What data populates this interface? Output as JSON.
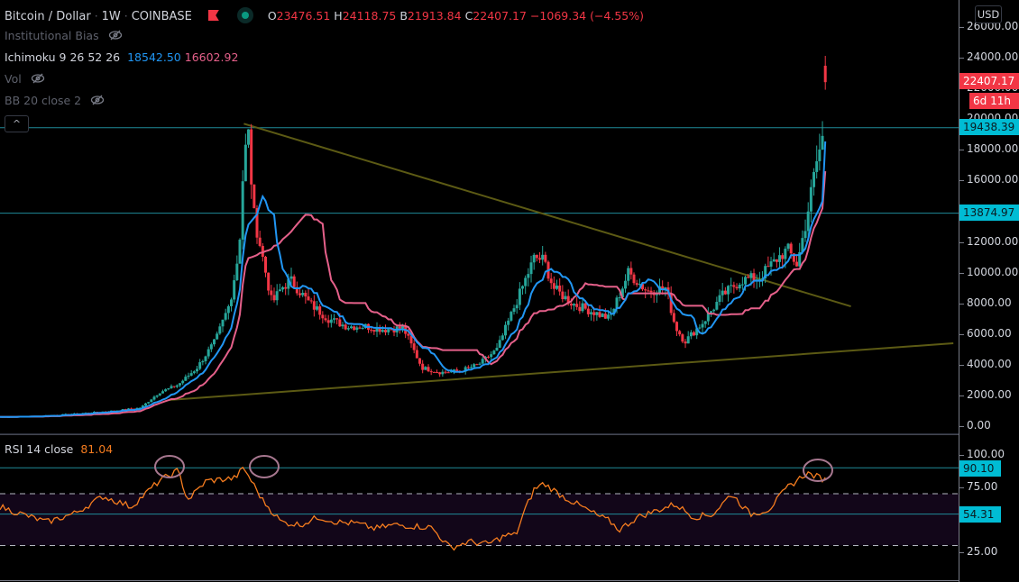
{
  "header": {
    "symbol": "Bitcoin / Dollar",
    "interval": "1W",
    "exchange": "COINBASE",
    "title_sep": " · ",
    "ohlc": {
      "o_label": "O",
      "o": "23476.51",
      "h_label": "H",
      "h": "24118.75",
      "b_label": "B",
      "b": "21913.84",
      "c_label": "C",
      "c": "22407.17",
      "change": "−1069.34 (−4.55%)"
    }
  },
  "indicators": [
    {
      "name": "Institutional Bias",
      "hidden": true
    },
    {
      "name": "Ichimoku 9 26 52 26",
      "values": [
        "18542.50",
        "16602.92"
      ]
    },
    {
      "name": "Vol",
      "hidden": true
    },
    {
      "name": "BB 20 close 2",
      "hidden": true
    }
  ],
  "collapse_button": "^",
  "price_axis": {
    "currency": "USD",
    "ticks": [
      "26000.00",
      "24000.00",
      "22000.00",
      "20000.00",
      "18000.00",
      "16000.00",
      "14000.00",
      "12000.00",
      "10000.00",
      "8000.00",
      "6000.00",
      "4000.00",
      "2000.00",
      "0.00"
    ],
    "last_price_badge": "22407.17",
    "countdown_badge": "6d 11h",
    "level_badges": [
      "19438.39",
      "13874.97"
    ]
  },
  "rsi": {
    "label": "RSI 14 close",
    "value": "81.04",
    "ticks": [
      "100.00",
      "75.00",
      "25.00"
    ],
    "level_badges": [
      "90.10",
      "54.31"
    ]
  },
  "colors": {
    "up": "#26a69a",
    "down": "#f23645",
    "tenkan": "#2196f3",
    "kijun": "#e5608a",
    "trendline": "#5c5a14",
    "hline": "#1f8a99",
    "badge_cyan": "#00bcd4",
    "rsi_line": "#f57c1f",
    "rsi_band": "#120619",
    "circle": "#a7778f"
  },
  "chart_data": [
    {
      "type": "candlestick",
      "title": "Bitcoin / Dollar · 1W · COINBASE",
      "ylabel": "USD",
      "ylim": [
        0,
        26000
      ],
      "yticks": [
        0,
        2000,
        4000,
        6000,
        8000,
        10000,
        12000,
        14000,
        16000,
        18000,
        20000,
        22000,
        24000,
        26000
      ],
      "last": {
        "open": 23476.51,
        "high": 24118.75,
        "low": 21913.84,
        "close": 22407.17,
        "change": -1069.34,
        "change_pct": -4.55
      },
      "horizontal_levels": [
        19438.39,
        13874.97
      ],
      "trendlines": [
        {
          "name": "descending resistance",
          "from": [
            0.26,
            19700
          ],
          "to": [
            0.84,
            7800
          ]
        },
        {
          "name": "ascending support",
          "from": [
            0.18,
            1700
          ],
          "to": [
            0.93,
            5400
          ]
        }
      ],
      "series": [
        {
          "name": "Close (approx)",
          "color": "#d1d4dc",
          "x": [
            0,
            0.04,
            0.08,
            0.12,
            0.15,
            0.17,
            0.19,
            0.21,
            0.23,
            0.245,
            0.255,
            0.26,
            0.265,
            0.27,
            0.28,
            0.29,
            0.3,
            0.31,
            0.33,
            0.35,
            0.37,
            0.39,
            0.41,
            0.43,
            0.45,
            0.47,
            0.49,
            0.51,
            0.53,
            0.55,
            0.56,
            0.57,
            0.58,
            0.59,
            0.61,
            0.63,
            0.65,
            0.67,
            0.69,
            0.71,
            0.72,
            0.73,
            0.75,
            0.77,
            0.79,
            0.81,
            0.83,
            0.84,
            0.85,
            0.86,
            0.87,
            0.88
          ],
          "y": [
            600,
            650,
            800,
            1000,
            1200,
            2200,
            2700,
            3800,
            5600,
            8000,
            11500,
            17500,
            19000,
            14000,
            11000,
            8000,
            9000,
            9500,
            8000,
            7000,
            6500,
            6500,
            6300,
            6400,
            3800,
            3500,
            3600,
            4000,
            5000,
            8000,
            9500,
            11000,
            10800,
            9000,
            8000,
            7500,
            7000,
            10000,
            8800,
            9000,
            6500,
            5500,
            6800,
            8500,
            9500,
            9700,
            11000,
            11500,
            10500,
            13500,
            17000,
            19500
          ]
        },
        {
          "name": "Ichimoku Tenkan",
          "color": "#2196f3",
          "last": 18542.5
        },
        {
          "name": "Ichimoku Kijun",
          "color": "#e5608a",
          "last": 16602.92
        }
      ]
    },
    {
      "type": "line",
      "title": "RSI 14 close",
      "ylim": [
        15,
        105
      ],
      "yticks": [
        25,
        75,
        100
      ],
      "bands": {
        "upper": 70,
        "lower": 30
      },
      "levels": [
        90.1,
        54.31
      ],
      "annotations": [
        "circle at RSI peak ~2017-06",
        "circle at RSI peak ~2017-12",
        "circle at current RSI peak ~88"
      ],
      "series": [
        {
          "name": "RSI",
          "color": "#f57c1f",
          "x": [
            0,
            0.02,
            0.05,
            0.08,
            0.11,
            0.14,
            0.17,
            0.19,
            0.2,
            0.22,
            0.25,
            0.26,
            0.28,
            0.3,
            0.32,
            0.34,
            0.36,
            0.38,
            0.4,
            0.42,
            0.44,
            0.46,
            0.48,
            0.5,
            0.52,
            0.54,
            0.55,
            0.56,
            0.57,
            0.58,
            0.6,
            0.62,
            0.64,
            0.65,
            0.66,
            0.68,
            0.7,
            0.72,
            0.74,
            0.76,
            0.78,
            0.8,
            0.82,
            0.84,
            0.86,
            0.88
          ],
          "y": [
            60,
            55,
            48,
            55,
            68,
            60,
            80,
            88,
            65,
            80,
            82,
            90,
            65,
            48,
            46,
            52,
            48,
            47,
            43,
            46,
            45,
            44,
            28,
            33,
            31,
            38,
            38,
            58,
            74,
            78,
            68,
            60,
            52,
            49,
            42,
            52,
            57,
            62,
            52,
            54,
            70,
            54,
            58,
            75,
            86,
            81
          ]
        }
      ]
    }
  ]
}
